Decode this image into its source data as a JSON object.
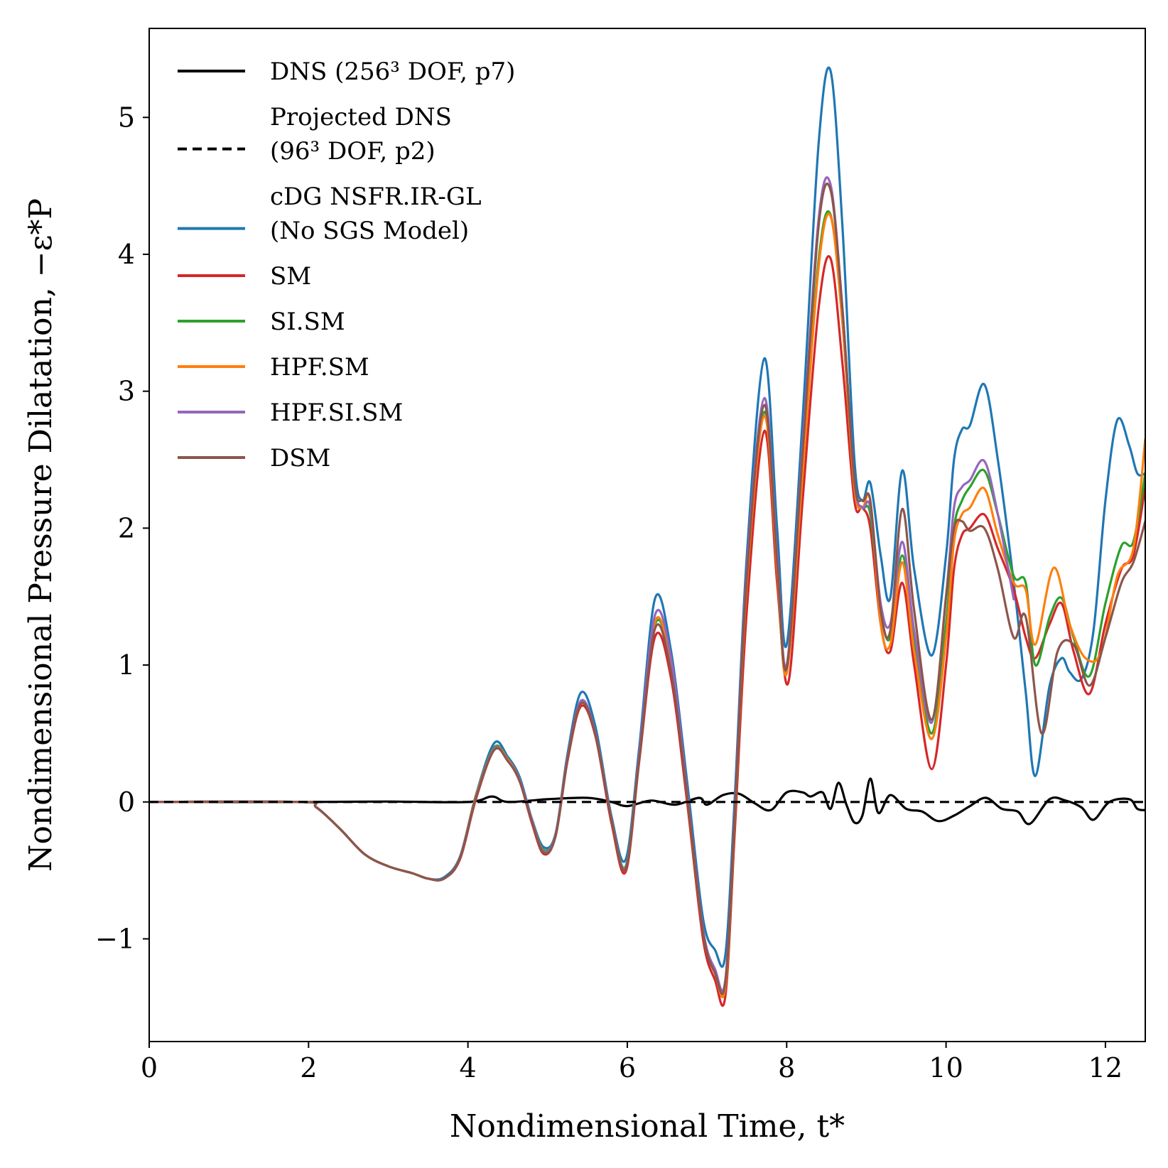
{
  "chart_data": {
    "type": "line",
    "title": "",
    "xlabel": "Nondimensional Time, t*",
    "ylabel": "Nondimensional Pressure Dilatation, −ε*P",
    "xlim": [
      0,
      12.5
    ],
    "ylim": [
      -1.75,
      5.65
    ],
    "xticks": [
      0,
      2,
      4,
      6,
      8,
      10,
      12
    ],
    "xtick_labels": [
      "0",
      "2",
      "4",
      "6",
      "8",
      "10",
      "12"
    ],
    "yticks": [
      -1,
      0,
      1,
      2,
      3,
      4,
      5
    ],
    "ytick_labels": [
      "−1",
      "0",
      "1",
      "2",
      "3",
      "4",
      "5"
    ],
    "legend_position": "top-left",
    "series": [
      {
        "name": "DNS (256³ DOF, p7)",
        "legend_lines": [
          "DNS (256³ DOF, p7)"
        ],
        "color": "#000000",
        "dash": "solid",
        "x": [
          0,
          2,
          3,
          4,
          4.3,
          4.5,
          5.0,
          5.5,
          5.8,
          6.0,
          6.3,
          6.6,
          6.9,
          7.0,
          7.2,
          7.4,
          7.6,
          7.8,
          8.0,
          8.2,
          8.3,
          8.45,
          8.55,
          8.65,
          8.75,
          8.85,
          8.95,
          9.05,
          9.15,
          9.3,
          9.5,
          9.7,
          9.9,
          10.1,
          10.3,
          10.5,
          10.7,
          10.9,
          11.05,
          11.3,
          11.5,
          11.7,
          11.85,
          12.05,
          12.3,
          12.4,
          12.5
        ],
        "y": [
          0,
          0,
          0.003,
          0,
          0.04,
          0,
          0.02,
          0.03,
          0,
          -0.03,
          0.01,
          -0.02,
          0.03,
          -0.02,
          0.05,
          0.06,
          -0.01,
          -0.06,
          0.07,
          0.07,
          0.04,
          0.07,
          -0.05,
          0.14,
          -0.02,
          -0.15,
          -0.1,
          0.17,
          -0.08,
          0.05,
          -0.05,
          -0.07,
          -0.14,
          -0.1,
          -0.03,
          0.03,
          -0.05,
          -0.07,
          -0.16,
          0.02,
          0.01,
          -0.04,
          -0.13,
          0,
          0.02,
          -0.05,
          -0.06
        ]
      },
      {
        "name": "Projected DNS (96³ DOF, p2)",
        "legend_lines": [
          "Projected DNS",
          "(96³ DOF, p2)"
        ],
        "color": "#000000",
        "dash": "dashed",
        "x": [
          0,
          4,
          6,
          8,
          10,
          12,
          12.5
        ],
        "y": [
          0,
          0,
          0,
          0,
          0,
          0,
          0
        ]
      },
      {
        "name": "cDG NSFR.IR-GL (No SGS Model)",
        "legend_lines": [
          "cDG NSFR.IR-GL",
          "(No SGS Model)"
        ],
        "color": "#1f77b4",
        "dash": "solid",
        "x": [
          0,
          1.9,
          2.1,
          2.4,
          2.7,
          3.0,
          3.3,
          3.5,
          3.7,
          3.9,
          4.1,
          4.33,
          4.5,
          4.65,
          4.8,
          4.95,
          5.1,
          5.25,
          5.42,
          5.6,
          5.8,
          5.98,
          6.15,
          6.35,
          6.55,
          6.75,
          6.95,
          7.1,
          7.23,
          7.35,
          7.5,
          7.72,
          7.88,
          8.0,
          8.2,
          8.4,
          8.55,
          8.7,
          8.85,
          8.95,
          9.05,
          9.18,
          9.3,
          9.45,
          9.6,
          9.82,
          10.0,
          10.1,
          10.2,
          10.3,
          10.48,
          10.65,
          10.85,
          11.0,
          11.12,
          11.3,
          11.45,
          11.55,
          11.7,
          11.85,
          12.0,
          12.15,
          12.3,
          12.4,
          12.5
        ],
        "y": [
          0,
          0,
          -0.04,
          -0.2,
          -0.38,
          -0.47,
          -0.52,
          -0.56,
          -0.55,
          -0.4,
          0.05,
          0.43,
          0.33,
          0.18,
          -0.12,
          -0.33,
          -0.23,
          0.35,
          0.8,
          0.55,
          -0.1,
          -0.42,
          0.4,
          1.49,
          1.1,
          0.15,
          -0.85,
          -1.08,
          -1.12,
          0.05,
          1.8,
          3.24,
          2.0,
          1.15,
          2.8,
          4.8,
          5.34,
          4.2,
          2.5,
          2.2,
          2.33,
          1.8,
          1.49,
          2.42,
          1.7,
          1.07,
          1.8,
          2.5,
          2.72,
          2.75,
          3.05,
          2.5,
          1.6,
          0.8,
          0.19,
          0.85,
          1.05,
          0.95,
          0.9,
          1.25,
          2.2,
          2.79,
          2.6,
          2.4,
          2.4
        ]
      },
      {
        "name": "SM",
        "legend_lines": [
          "SM"
        ],
        "color": "#d62728",
        "dash": "solid",
        "x": [
          0,
          1.9,
          2.1,
          2.4,
          2.7,
          3.0,
          3.3,
          3.5,
          3.7,
          3.9,
          4.1,
          4.33,
          4.5,
          4.65,
          4.8,
          4.95,
          5.1,
          5.25,
          5.42,
          5.6,
          5.8,
          5.98,
          6.15,
          6.35,
          6.55,
          6.75,
          6.95,
          7.1,
          7.23,
          7.35,
          7.5,
          7.72,
          7.88,
          8.02,
          8.2,
          8.4,
          8.55,
          8.7,
          8.85,
          8.95,
          9.05,
          9.18,
          9.3,
          9.45,
          9.6,
          9.82,
          10.0,
          10.1,
          10.2,
          10.3,
          10.48,
          10.65,
          10.85,
          11.0,
          11.12,
          11.3,
          11.45,
          11.6,
          11.8,
          12.0,
          12.2,
          12.35,
          12.5
        ],
        "y": [
          0,
          0,
          -0.04,
          -0.2,
          -0.38,
          -0.47,
          -0.52,
          -0.56,
          -0.56,
          -0.42,
          0.02,
          0.38,
          0.3,
          0.15,
          -0.15,
          -0.38,
          -0.25,
          0.3,
          0.7,
          0.48,
          -0.15,
          -0.51,
          0.3,
          1.21,
          0.9,
          0.0,
          -1.0,
          -1.3,
          -1.42,
          -0.2,
          1.4,
          2.71,
          1.6,
          0.87,
          2.2,
          3.6,
          3.97,
          3.2,
          2.2,
          2.15,
          2.0,
          1.3,
          1.1,
          1.6,
          1.0,
          0.24,
          1.0,
          1.7,
          1.95,
          2.0,
          2.1,
          1.85,
          1.55,
          1.2,
          1.05,
          1.3,
          1.45,
          1.1,
          0.79,
          1.3,
          1.7,
          1.8,
          2.3
        ]
      },
      {
        "name": "SI.SM",
        "legend_lines": [
          "SI.SM"
        ],
        "color": "#2ca02c",
        "dash": "solid",
        "x": [
          0,
          1.9,
          2.1,
          2.4,
          2.7,
          3.0,
          3.3,
          3.5,
          3.7,
          3.9,
          4.1,
          4.33,
          4.5,
          4.65,
          4.8,
          4.95,
          5.1,
          5.25,
          5.42,
          5.6,
          5.8,
          5.98,
          6.15,
          6.35,
          6.55,
          6.75,
          6.95,
          7.1,
          7.23,
          7.35,
          7.5,
          7.72,
          7.88,
          8.0,
          8.2,
          8.4,
          8.55,
          8.7,
          8.85,
          8.95,
          9.05,
          9.18,
          9.3,
          9.45,
          9.6,
          9.82,
          10.0,
          10.1,
          10.2,
          10.3,
          10.48,
          10.65,
          10.85,
          11.0,
          11.12,
          11.3,
          11.45,
          11.6,
          11.8,
          12.0,
          12.2,
          12.35,
          12.5
        ],
        "y": [
          0,
          0,
          -0.04,
          -0.2,
          -0.38,
          -0.47,
          -0.52,
          -0.56,
          -0.56,
          -0.41,
          0.04,
          0.4,
          0.31,
          0.16,
          -0.13,
          -0.35,
          -0.24,
          0.32,
          0.74,
          0.5,
          -0.12,
          -0.47,
          0.35,
          1.3,
          1.0,
          0.05,
          -0.95,
          -1.25,
          -1.35,
          -0.1,
          1.6,
          2.85,
          1.7,
          0.95,
          2.4,
          3.95,
          4.29,
          3.5,
          2.3,
          2.15,
          2.1,
          1.4,
          1.2,
          1.8,
          1.2,
          0.5,
          1.3,
          2.0,
          2.2,
          2.3,
          2.42,
          2.1,
          1.65,
          1.6,
          1.0,
          1.35,
          1.49,
          1.2,
          0.92,
          1.45,
          1.87,
          1.9,
          2.4
        ]
      },
      {
        "name": "HPF.SM",
        "legend_lines": [
          "HPF.SM"
        ],
        "color": "#ff7f0e",
        "dash": "solid",
        "x": [
          0,
          1.9,
          2.1,
          2.4,
          2.7,
          3.0,
          3.3,
          3.5,
          3.7,
          3.9,
          4.1,
          4.33,
          4.5,
          4.65,
          4.8,
          4.95,
          5.1,
          5.25,
          5.42,
          5.6,
          5.8,
          5.98,
          6.15,
          6.35,
          6.55,
          6.75,
          6.95,
          7.1,
          7.23,
          7.35,
          7.5,
          7.72,
          7.88,
          8.0,
          8.2,
          8.4,
          8.55,
          8.7,
          8.85,
          8.95,
          9.05,
          9.18,
          9.3,
          9.45,
          9.6,
          9.82,
          10.0,
          10.1,
          10.2,
          10.3,
          10.48,
          10.65,
          10.85,
          11.0,
          11.12,
          11.35,
          11.55,
          11.75,
          11.95,
          12.15,
          12.35,
          12.5
        ],
        "y": [
          0,
          0,
          -0.04,
          -0.2,
          -0.38,
          -0.47,
          -0.52,
          -0.56,
          -0.56,
          -0.41,
          0.04,
          0.39,
          0.31,
          0.16,
          -0.13,
          -0.36,
          -0.24,
          0.32,
          0.73,
          0.5,
          -0.12,
          -0.48,
          0.34,
          1.32,
          1.0,
          0.05,
          -0.95,
          -1.25,
          -1.35,
          -0.1,
          1.6,
          2.82,
          1.7,
          0.94,
          2.4,
          3.9,
          4.28,
          3.5,
          2.3,
          2.15,
          2.2,
          1.3,
          1.15,
          1.75,
          1.1,
          0.46,
          1.2,
          1.9,
          2.1,
          2.15,
          2.29,
          1.95,
          1.6,
          1.55,
          1.15,
          1.71,
          1.3,
          1.05,
          1.1,
          1.65,
          1.85,
          2.65
        ]
      },
      {
        "name": "HPF.SI.SM",
        "legend_lines": [
          "HPF.SI.SM"
        ],
        "color": "#9467bd",
        "dash": "solid",
        "x": [
          0,
          1.9,
          2.1,
          2.4,
          2.7,
          3.0,
          3.3,
          3.5,
          3.7,
          3.9,
          4.1,
          4.33,
          4.5,
          4.65,
          4.8,
          4.95,
          5.1,
          5.25,
          5.42,
          5.6,
          5.8,
          5.98,
          6.15,
          6.35,
          6.55,
          6.75,
          6.95,
          7.1,
          7.23,
          7.35,
          7.5,
          7.72,
          7.88,
          8.0,
          8.2,
          8.4,
          8.55,
          8.7,
          8.85,
          8.95,
          9.05,
          9.18,
          9.3,
          9.45,
          9.6,
          9.82,
          10.0,
          10.1,
          10.2,
          10.3,
          10.48,
          10.65,
          10.85
        ],
        "y": [
          0,
          0,
          -0.04,
          -0.2,
          -0.38,
          -0.47,
          -0.52,
          -0.56,
          -0.56,
          -0.41,
          0.03,
          0.39,
          0.3,
          0.16,
          -0.13,
          -0.36,
          -0.24,
          0.32,
          0.74,
          0.5,
          -0.12,
          -0.48,
          0.35,
          1.37,
          1.05,
          0.08,
          -0.93,
          -1.22,
          -1.3,
          -0.05,
          1.7,
          2.95,
          1.8,
          1.0,
          2.6,
          4.25,
          4.51,
          3.6,
          2.35,
          2.15,
          2.15,
          1.45,
          1.3,
          1.9,
          1.25,
          0.58,
          1.5,
          2.15,
          2.3,
          2.35,
          2.49,
          2.1,
          1.48
        ]
      },
      {
        "name": "DSM",
        "legend_lines": [
          "DSM"
        ],
        "color": "#8c564b",
        "dash": "solid",
        "x": [
          0,
          1.9,
          2.1,
          2.4,
          2.7,
          3.0,
          3.3,
          3.5,
          3.7,
          3.9,
          4.1,
          4.33,
          4.5,
          4.65,
          4.8,
          4.95,
          5.1,
          5.25,
          5.42,
          5.6,
          5.8,
          5.98,
          6.15,
          6.35,
          6.55,
          6.75,
          6.95,
          7.1,
          7.23,
          7.35,
          7.5,
          7.72,
          7.88,
          8.0,
          8.2,
          8.4,
          8.55,
          8.7,
          8.85,
          8.95,
          9.05,
          9.18,
          9.3,
          9.45,
          9.6,
          9.82,
          10.0,
          10.1,
          10.2,
          10.3,
          10.48,
          10.65,
          10.85,
          11.0,
          11.2,
          11.4,
          11.6,
          11.8,
          12.0,
          12.2,
          12.35,
          12.5
        ],
        "y": [
          0,
          0,
          -0.04,
          -0.2,
          -0.38,
          -0.47,
          -0.52,
          -0.56,
          -0.56,
          -0.41,
          0.03,
          0.38,
          0.3,
          0.15,
          -0.14,
          -0.37,
          -0.25,
          0.31,
          0.72,
          0.49,
          -0.13,
          -0.49,
          0.32,
          1.27,
          0.95,
          0.05,
          -0.95,
          -1.25,
          -1.32,
          -0.08,
          1.65,
          2.9,
          1.75,
          0.98,
          2.55,
          4.2,
          4.47,
          3.6,
          2.35,
          2.2,
          2.2,
          1.4,
          1.25,
          2.14,
          1.4,
          0.6,
          1.5,
          2.0,
          2.05,
          1.98,
          2.0,
          1.7,
          1.2,
          1.35,
          0.5,
          1.1,
          1.15,
          0.85,
          1.2,
          1.6,
          1.75,
          2.05
        ]
      }
    ]
  }
}
